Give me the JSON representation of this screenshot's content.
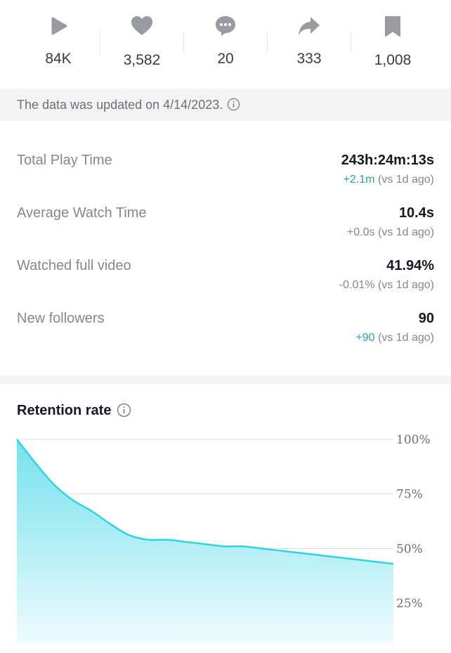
{
  "stats": {
    "views": {
      "icon": "play-icon",
      "value": "84K"
    },
    "likes": {
      "icon": "heart-icon",
      "value": "3,582"
    },
    "comments": {
      "icon": "comment-icon",
      "value": "20"
    },
    "shares": {
      "icon": "share-icon",
      "value": "333"
    },
    "saves": {
      "icon": "bookmark-icon",
      "value": "1,008"
    }
  },
  "notice": {
    "text": "The data was updated on 4/14/2023.",
    "icon": "info-icon"
  },
  "metrics": [
    {
      "label": "Total Play Time",
      "value": "243h:24m:13s",
      "delta": "+2.1m",
      "delta_positive": true,
      "compare": "(vs 1d ago)"
    },
    {
      "label": "Average Watch Time",
      "value": "10.4s",
      "delta": "+0.0s",
      "delta_positive": false,
      "compare": "(vs 1d ago)"
    },
    {
      "label": "Watched full video",
      "value": "41.94%",
      "delta": "-0.01%",
      "delta_positive": false,
      "compare": "(vs 1d ago)"
    },
    {
      "label": "New followers",
      "value": "90",
      "delta": "+90",
      "delta_positive": true,
      "compare": "(vs 1d ago)"
    }
  ],
  "retention": {
    "title": "Retention rate",
    "icon": "info-icon"
  },
  "colors": {
    "accent": "#2ea0b0",
    "line": "#2fd3e6",
    "fill_top": "#6fe0ec",
    "fill_bottom": "#eefbfd",
    "icon_gray": "#9a9ba1"
  },
  "chart_data": {
    "type": "area",
    "title": "Retention rate",
    "xlabel": "",
    "ylabel": "",
    "ylim": [
      0,
      100
    ],
    "yticks": [
      100,
      75,
      50,
      25
    ],
    "ytick_labels": [
      "100%",
      "75%",
      "50%",
      "25%"
    ],
    "grid": true,
    "x": [
      0,
      5,
      10,
      15,
      20,
      25,
      30,
      35,
      40,
      45,
      50,
      55,
      60,
      65,
      70,
      75,
      80,
      85,
      90,
      95,
      100
    ],
    "series": [
      {
        "values": [
          100,
          89,
          79,
          72,
          67,
          61,
          56,
          54,
          54,
          53,
          52,
          51,
          51,
          50,
          49,
          48,
          47,
          46,
          45,
          44,
          43
        ]
      }
    ]
  }
}
